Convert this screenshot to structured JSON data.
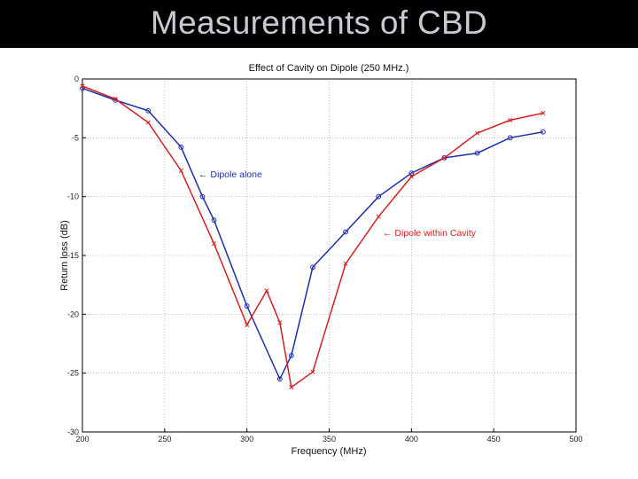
{
  "slide": {
    "title": "Measurements of CBD"
  },
  "chart_data": {
    "type": "line",
    "title": "Effect of Cavity on Dipole (250 MHz.)",
    "xlabel": "Frequency (MHz)",
    "ylabel": "Return loss (dB)",
    "xlim": [
      200,
      500
    ],
    "ylim": [
      -30,
      0
    ],
    "x_ticks": [
      200,
      250,
      300,
      350,
      400,
      450,
      500
    ],
    "y_ticks": [
      0,
      -5,
      -10,
      -15,
      -20,
      -25,
      -30
    ],
    "x_tick_labels": [
      "200",
      "250",
      "300",
      "350",
      "400",
      "450",
      "500"
    ],
    "y_tick_labels": [
      "0",
      "-5",
      "-10",
      "-15",
      "-20",
      "-25",
      "-30"
    ],
    "grid": true,
    "series": [
      {
        "name": "Dipole alone",
        "color": "#1f2fa8",
        "marker": "circle",
        "x": [
          200,
          220,
          240,
          260,
          273,
          280,
          300,
          320,
          327,
          340,
          360,
          380,
          400,
          420,
          440,
          460,
          480
        ],
        "y": [
          -0.8,
          -1.8,
          -2.7,
          -5.8,
          -10,
          -12,
          -19.3,
          -25.5,
          -23.5,
          -16,
          -13,
          -10,
          -8,
          -6.7,
          -6.3,
          -5,
          -4.5
        ]
      },
      {
        "name": "Dipole within Cavity",
        "color": "#d42020",
        "marker": "cross",
        "x": [
          200,
          220,
          240,
          260,
          280,
          300,
          312,
          320,
          327,
          340,
          360,
          380,
          400,
          420,
          440,
          460,
          480
        ],
        "y": [
          -0.6,
          -1.7,
          -3.7,
          -7.8,
          -14,
          -20.9,
          -18,
          -20.7,
          -26.2,
          -24.9,
          -15.7,
          -11.7,
          -8.3,
          -6.7,
          -4.6,
          -3.5,
          -2.9
        ]
      }
    ],
    "annotations": [
      {
        "text": "← Dipole alone",
        "series": "Dipole alone",
        "color": "#1f2fa8"
      },
      {
        "text": "← Dipole within Cavity",
        "series": "Dipole within Cavity",
        "color": "#d42020"
      }
    ]
  }
}
